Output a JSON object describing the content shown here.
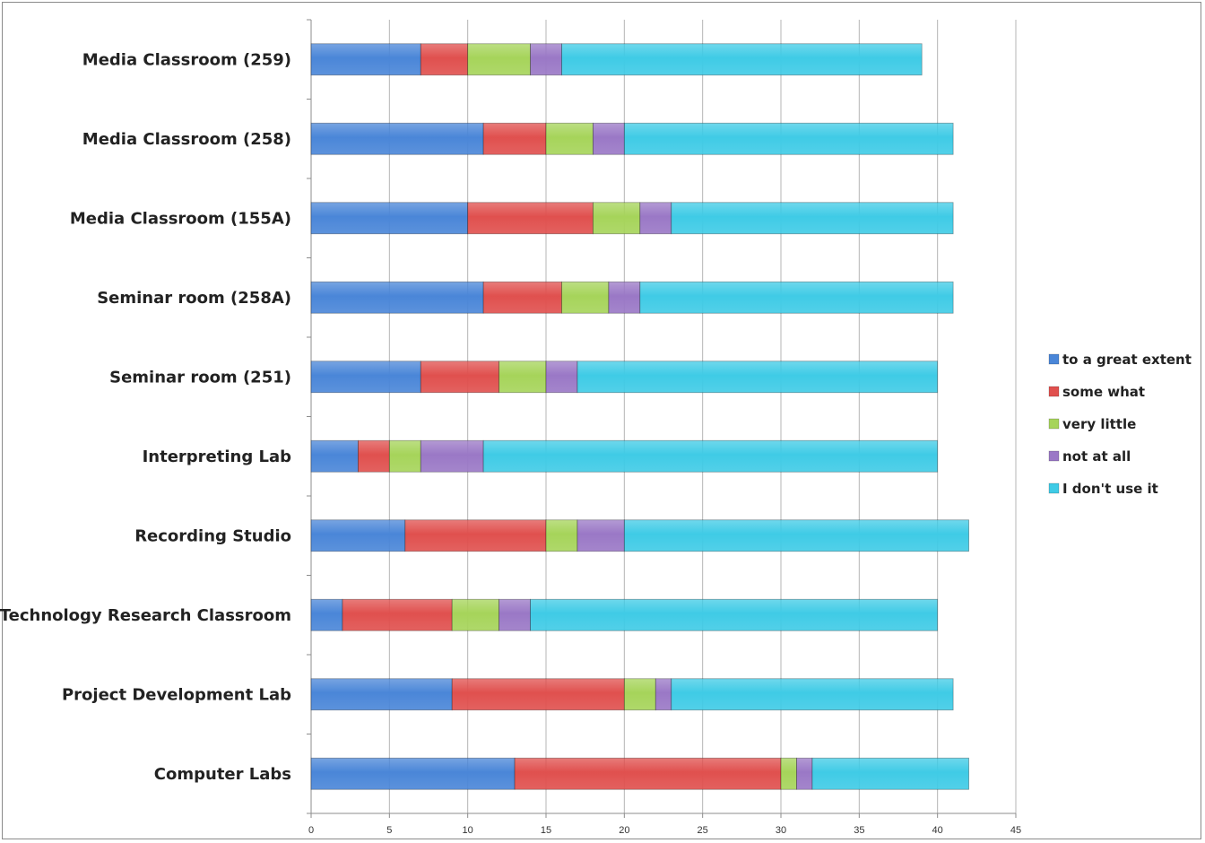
{
  "chart_data": {
    "type": "bar",
    "orientation": "horizontal",
    "stacked": true,
    "title": "",
    "xlabel": "",
    "ylabel": "",
    "xlim": [
      0,
      45
    ],
    "x_ticks": [
      0,
      5,
      10,
      15,
      20,
      25,
      30,
      35,
      40,
      45
    ],
    "grid": "vertical",
    "legend_position": "right",
    "categories": [
      "Media Classroom (259)",
      "Media Classroom (258)",
      "Media Classroom (155A)",
      "Seminar room (258A)",
      "Seminar room (251)",
      "Interpreting Lab",
      "Recording Studio",
      "Technology Research Classroom",
      "Project Development Lab",
      "Computer Labs"
    ],
    "series": [
      {
        "name": "to a great extent",
        "color": "#4a86d8",
        "values": [
          7,
          11,
          10,
          11,
          7,
          3,
          6,
          2,
          9,
          13
        ]
      },
      {
        "name": "some what",
        "color": "#e0504e",
        "values": [
          3,
          4,
          8,
          5,
          5,
          2,
          9,
          7,
          11,
          17
        ]
      },
      {
        "name": "very little",
        "color": "#a6d45a",
        "values": [
          4,
          3,
          3,
          3,
          3,
          2,
          2,
          3,
          2,
          1
        ]
      },
      {
        "name": "not at all",
        "color": "#9a78c6",
        "values": [
          2,
          2,
          2,
          2,
          2,
          4,
          3,
          2,
          1,
          1
        ]
      },
      {
        "name": "I don't use it",
        "color": "#3fcbe6",
        "values": [
          23,
          21,
          18,
          20,
          23,
          29,
          22,
          26,
          18,
          10
        ]
      }
    ]
  }
}
